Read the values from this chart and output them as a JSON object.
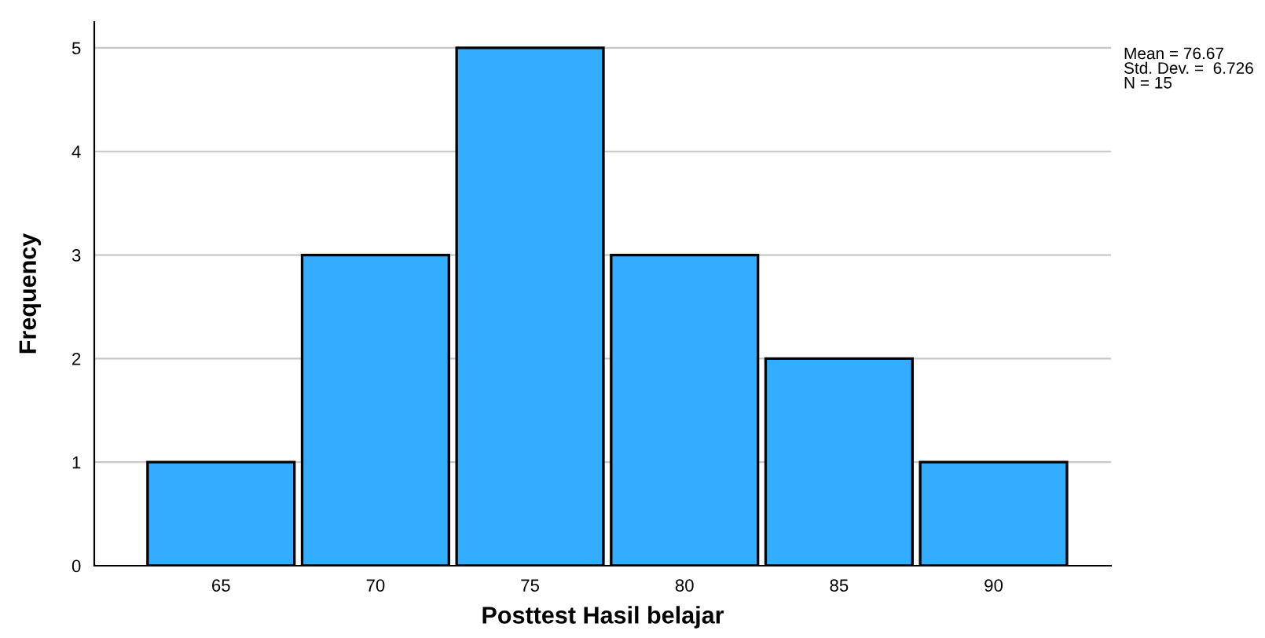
{
  "chart_data": {
    "type": "histogram",
    "xlabel": "Posttest Hasil belajar",
    "ylabel": "Frequency",
    "bins": [
      62.5,
      67.5,
      72.5,
      77.5,
      82.5,
      87.5,
      92.5
    ],
    "values": [
      1,
      3,
      5,
      3,
      2,
      1
    ],
    "color": "#33adff",
    "xlim": [
      60.9,
      93.8
    ],
    "xticks": [
      65,
      70,
      75,
      80,
      85,
      90
    ],
    "ylim": [
      0,
      5.25
    ],
    "yticks": [
      0,
      1,
      2,
      3,
      4,
      5
    ],
    "grid": "y",
    "annotations": [
      "Mean = 76.67\nStd. Dev. =  6.726\nN = 15"
    ]
  }
}
